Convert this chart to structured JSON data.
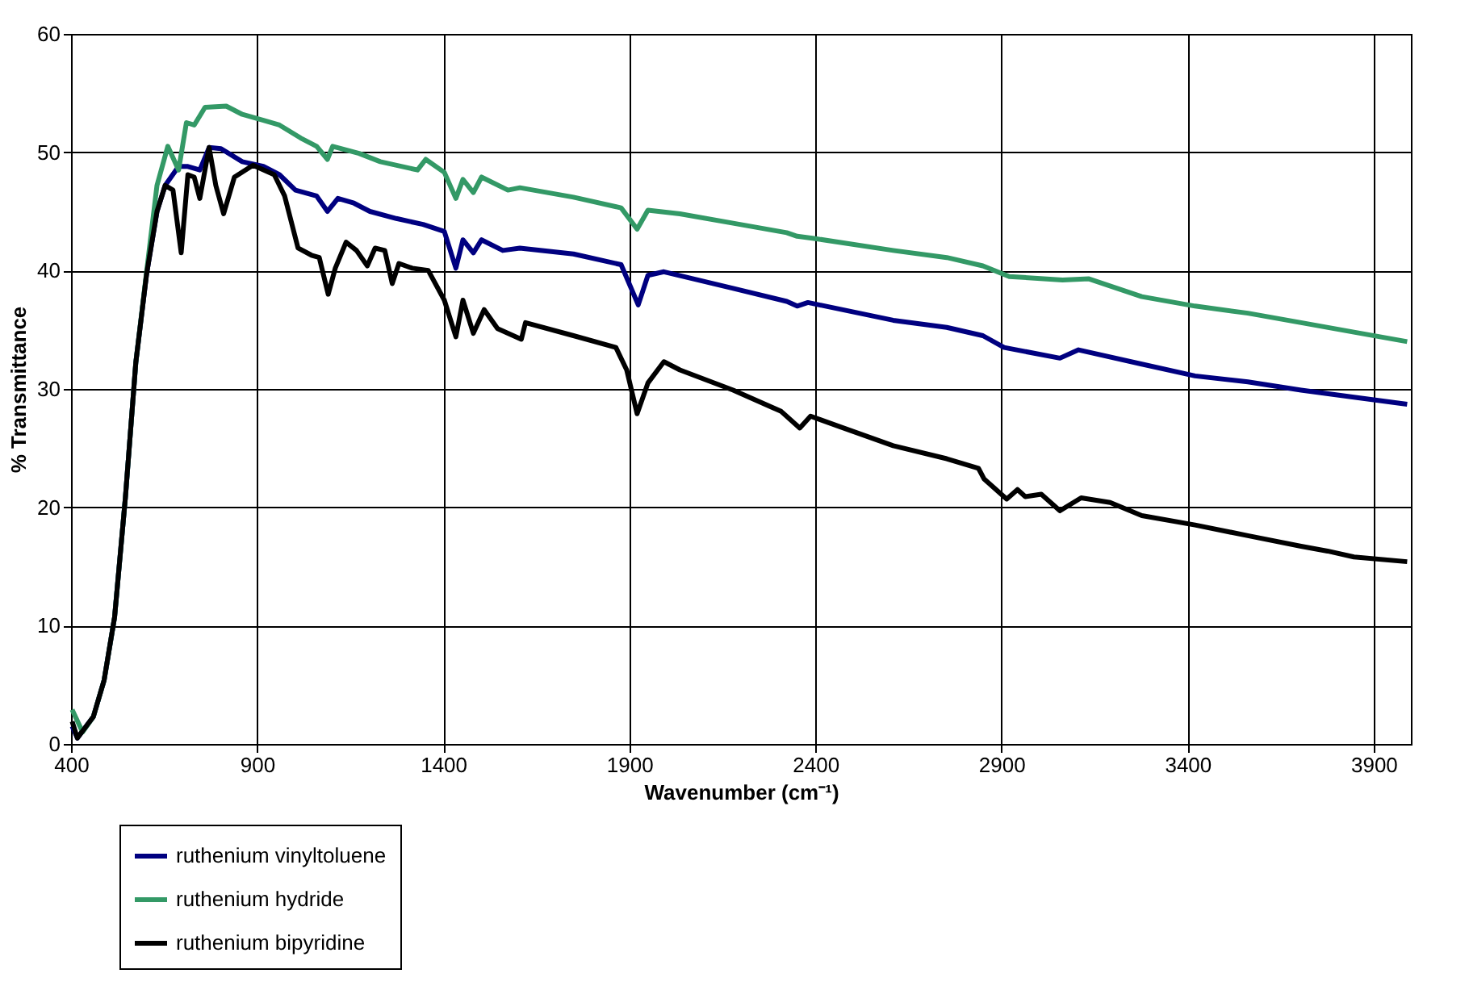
{
  "chart_data": {
    "type": "line",
    "xlabel": "Wavenumber (cm⁻¹)",
    "ylabel": "% Transmittance",
    "xlim": [
      400,
      4000
    ],
    "ylim": [
      0,
      60
    ],
    "xticks": [
      400,
      900,
      1400,
      1900,
      2400,
      2900,
      3400,
      3900
    ],
    "yticks": [
      0,
      10,
      20,
      30,
      40,
      50,
      60
    ],
    "grid": true,
    "legend": "bottom left",
    "marker": "none",
    "line_style": "solid",
    "series": [
      {
        "name": "ruthenium vinyltoluene",
        "color": "#000080",
        "x": [
          403,
          417,
          460,
          489,
          517,
          546,
          574,
          603,
          631,
          653,
          689,
          714,
          746,
          771,
          803,
          860,
          917,
          960,
          1003,
          1060,
          1089,
          1117,
          1160,
          1203,
          1274,
          1346,
          1403,
          1434,
          1453,
          1481,
          1503,
          1560,
          1606,
          1750,
          1878,
          1924,
          1950,
          1993,
          2179,
          2323,
          2351,
          2380,
          2609,
          2753,
          2850,
          2907,
          3057,
          3107,
          3277,
          3420,
          3562,
          3705,
          3847,
          3990
        ],
        "values": [
          1.5,
          0.5,
          2.3,
          5.4,
          10.7,
          20.8,
          32.2,
          39.7,
          45,
          47.2,
          48.8,
          48.8,
          48.5,
          50.4,
          50.3,
          49.2,
          48.8,
          48.1,
          46.8,
          46.3,
          45,
          46.1,
          45.7,
          45,
          44.4,
          43.9,
          43.3,
          40.2,
          42.6,
          41.5,
          42.6,
          41.7,
          41.9,
          41.4,
          40.5,
          37.1,
          39.6,
          39.9,
          38.5,
          37.4,
          37,
          37.3,
          35.8,
          35.2,
          34.5,
          33.5,
          32.6,
          33.3,
          32.1,
          31.1,
          30.6,
          29.9,
          29.3,
          28.7
        ]
      },
      {
        "name": "ruthenium hydride",
        "color": "#339966",
        "x": [
          403,
          431,
          460,
          489,
          517,
          546,
          574,
          603,
          631,
          660,
          689,
          710,
          731,
          760,
          817,
          860,
          917,
          960,
          1017,
          1060,
          1089,
          1103,
          1174,
          1231,
          1331,
          1353,
          1403,
          1434,
          1453,
          1481,
          1503,
          1574,
          1606,
          1750,
          1878,
          1921,
          1950,
          2036,
          2179,
          2323,
          2351,
          2400,
          2609,
          2753,
          2850,
          2921,
          3064,
          3135,
          3277,
          3420,
          3562,
          3705,
          3847,
          3990
        ],
        "values": [
          2.9,
          1.0,
          2.3,
          5.4,
          10.7,
          20.8,
          32.2,
          39.9,
          47.2,
          50.5,
          48.5,
          52.5,
          52.3,
          53.8,
          53.9,
          53.2,
          52.7,
          52.3,
          51.2,
          50.5,
          49.4,
          50.5,
          49.9,
          49.2,
          48.5,
          49.4,
          48.3,
          46.1,
          47.7,
          46.6,
          47.9,
          46.8,
          47,
          46.2,
          45.3,
          43.5,
          45.1,
          44.8,
          44,
          43.2,
          42.9,
          42.7,
          41.7,
          41.1,
          40.4,
          39.5,
          39.2,
          39.3,
          37.8,
          37,
          36.4,
          35.6,
          34.8,
          34
        ]
      },
      {
        "name": "ruthenium bipyridine",
        "color": "#000000",
        "x": [
          403,
          417,
          460,
          489,
          517,
          546,
          574,
          603,
          631,
          653,
          674,
          696,
          714,
          731,
          746,
          771,
          789,
          810,
          839,
          889,
          946,
          974,
          1010,
          1046,
          1067,
          1091,
          1110,
          1139,
          1167,
          1196,
          1217,
          1243,
          1263,
          1281,
          1317,
          1360,
          1403,
          1434,
          1453,
          1481,
          1510,
          1546,
          1610,
          1621,
          1750,
          1864,
          1893,
          1921,
          1950,
          1993,
          2036,
          2179,
          2308,
          2358,
          2387,
          2466,
          2609,
          2753,
          2838,
          2853,
          2914,
          2943,
          2964,
          3007,
          3057,
          3114,
          3192,
          3277,
          3420,
          3562,
          3705,
          3776,
          3847,
          3990
        ],
        "values": [
          1.9,
          0.5,
          2.3,
          5.4,
          10.7,
          20.8,
          32.2,
          39.7,
          45,
          47.2,
          46.8,
          41.5,
          48.1,
          47.9,
          46.1,
          50.4,
          47.2,
          44.8,
          47.9,
          48.9,
          48.1,
          46.3,
          41.9,
          41.3,
          41.1,
          38,
          40.2,
          42.4,
          41.7,
          40.4,
          41.9,
          41.7,
          38.9,
          40.6,
          40.2,
          40,
          37.5,
          34.4,
          37.5,
          34.7,
          36.7,
          35.1,
          34.2,
          35.6,
          34.5,
          33.5,
          31.6,
          27.9,
          30.5,
          32.3,
          31.6,
          29.9,
          28.1,
          26.7,
          27.7,
          26.8,
          25.2,
          24.1,
          23.3,
          22.4,
          20.7,
          21.5,
          20.9,
          21.1,
          19.7,
          20.8,
          20.4,
          19.3,
          18.5,
          17.6,
          16.7,
          16.3,
          15.8,
          15.4
        ]
      }
    ]
  }
}
